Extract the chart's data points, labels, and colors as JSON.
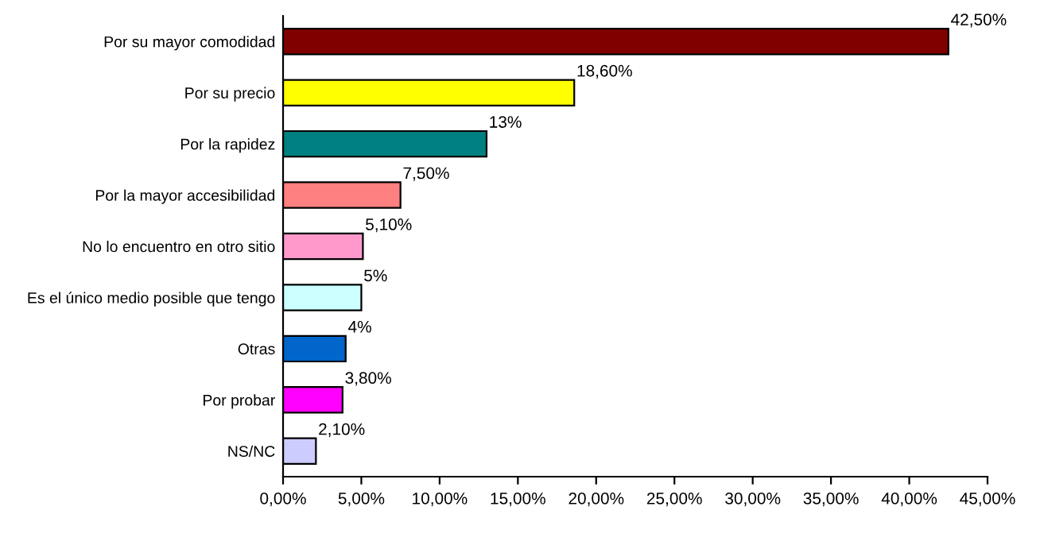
{
  "chart_data": {
    "type": "bar",
    "orientation": "horizontal",
    "categories": [
      "Por su mayor comodidad",
      "Por su precio",
      "Por la rapidez",
      "Por la mayor accesibilidad",
      "No lo encuentro en otro sitio",
      "Es el único medio posible que tengo",
      "Otras",
      "Por probar",
      "NS/NC"
    ],
    "values": [
      42.5,
      18.6,
      13,
      7.5,
      5.1,
      5,
      4,
      3.8,
      2.1
    ],
    "colors": [
      "#800000",
      "#ffff00",
      "#008080",
      "#ff8080",
      "#ff99cc",
      "#ccffff",
      "#0066cc",
      "#ff00ff",
      "#ccccff"
    ],
    "value_labels": [
      "42,50%",
      "18,60%",
      "13%",
      "7,50%",
      "5,10%",
      "5%",
      "4%",
      "3,80%",
      "2,10%"
    ],
    "xlim": [
      0,
      45
    ],
    "xticks": [
      {
        "value": 0,
        "label": "0,00%"
      },
      {
        "value": 5,
        "label": "5,00%"
      },
      {
        "value": 10,
        "label": "10,00%"
      },
      {
        "value": 15,
        "label": "15,00%"
      },
      {
        "value": 20,
        "label": "20,00%"
      },
      {
        "value": 25,
        "label": "25,00%"
      },
      {
        "value": 30,
        "label": "30,00%"
      },
      {
        "value": 35,
        "label": "35,00%"
      },
      {
        "value": 40,
        "label": "40,00%"
      },
      {
        "value": 45,
        "label": "45,00%"
      }
    ],
    "grid": false,
    "legend": false
  }
}
